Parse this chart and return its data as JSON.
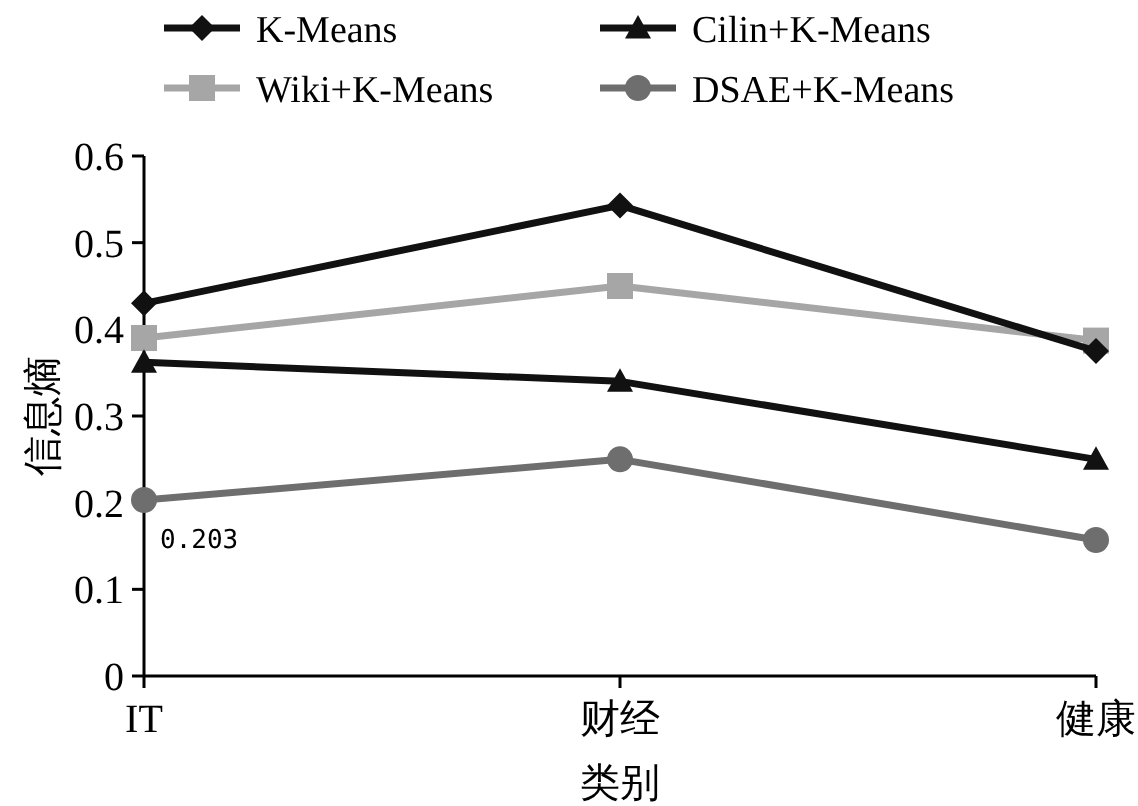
{
  "chart_data": {
    "type": "line",
    "xlabel": "类别",
    "ylabel": "信息熵",
    "categories": [
      "IT",
      "财经",
      "健康"
    ],
    "series": [
      {
        "name": "K-Means",
        "color": "#111111",
        "marker": "diamond",
        "values": [
          0.43,
          0.543,
          0.375
        ]
      },
      {
        "name": "Cilin+K-Means",
        "color": "#111111",
        "marker": "triangle",
        "values": [
          0.362,
          0.34,
          0.25
        ]
      },
      {
        "name": "Wiki+K-Means",
        "color": "#a6a6a6",
        "marker": "square",
        "values": [
          0.39,
          0.45,
          0.387
        ]
      },
      {
        "name": "DSAE+K-Means",
        "color": "#6e6e6e",
        "marker": "circle",
        "values": [
          0.203,
          0.25,
          0.157
        ]
      }
    ],
    "ylim": [
      0,
      0.6
    ],
    "yticks": [
      0,
      {
        "value": 0.1,
        "label": "0.1"
      },
      {
        "value": 0.2,
        "label": "0.2"
      },
      {
        "value": 0.3,
        "label": "0.3"
      },
      {
        "value": 0.4,
        "label": "0.4"
      },
      {
        "value": 0.5,
        "label": "0.5"
      },
      {
        "value": 0.6,
        "label": "0.6"
      }
    ],
    "grid": false,
    "legend": "top",
    "line_style": "solid",
    "annotations": [
      {
        "text": "0.203",
        "x": "IT",
        "y": 0.203
      }
    ]
  }
}
